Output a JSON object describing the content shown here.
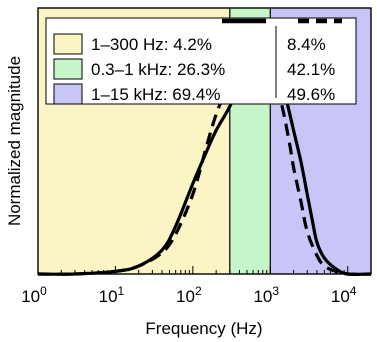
{
  "chart_data": {
    "type": "line",
    "xlabel": "Frequency (Hz)",
    "ylabel": "Normalized magnitude",
    "xscale": "log",
    "xlim": [
      1,
      20000
    ],
    "ylim": [
      0,
      1.0
    ],
    "grid": false,
    "x_ticks": [
      {
        "value": 1,
        "base": "10",
        "exp": "0"
      },
      {
        "value": 10,
        "base": "10",
        "exp": "1"
      },
      {
        "value": 100,
        "base": "10",
        "exp": "2"
      },
      {
        "value": 1000,
        "base": "10",
        "exp": "3"
      },
      {
        "value": 10000,
        "base": "10",
        "exp": "4"
      }
    ],
    "bands": [
      {
        "label": "1–300 Hz: 4.2%",
        "alt_value": "8.4%",
        "from": 1,
        "to": 300,
        "color": "#fbf4c4"
      },
      {
        "label": "0.3–1 kHz: 26.3%",
        "alt_value": "42.1%",
        "from": 300,
        "to": 1000,
        "color": "#c6f5c9"
      },
      {
        "label": "1–15 kHz: 69.4%",
        "alt_value": "49.6%",
        "from": 1000,
        "to": 20000,
        "color": "#c7c6f7"
      }
    ],
    "series": [
      {
        "style": "solid",
        "x": [
          1,
          3,
          10,
          20,
          40,
          60,
          100,
          150,
          200,
          300,
          400,
          500,
          600,
          700,
          800,
          1000,
          1300,
          1600,
          2000,
          2500,
          3000,
          3500,
          4000,
          5000,
          7000,
          10000,
          20000
        ],
        "y": [
          0.0,
          0.0,
          0.01,
          0.03,
          0.09,
          0.18,
          0.34,
          0.46,
          0.54,
          0.63,
          0.72,
          0.8,
          0.87,
          0.94,
          0.9,
          0.84,
          0.76,
          0.66,
          0.54,
          0.42,
          0.3,
          0.2,
          0.12,
          0.06,
          0.02,
          0.0,
          0.0
        ]
      },
      {
        "style": "dashed",
        "x": [
          1,
          3,
          10,
          20,
          40,
          60,
          100,
          150,
          200,
          300,
          400,
          500,
          600,
          700,
          800,
          1000,
          1200,
          1500,
          1800,
          2000,
          2500,
          3000,
          4000,
          5000,
          7000,
          10000,
          20000
        ],
        "y": [
          0.0,
          0.0,
          0.01,
          0.03,
          0.08,
          0.15,
          0.3,
          0.48,
          0.6,
          0.73,
          0.84,
          0.89,
          0.91,
          0.92,
          0.88,
          0.82,
          0.72,
          0.6,
          0.48,
          0.4,
          0.27,
          0.16,
          0.07,
          0.03,
          0.01,
          0.0,
          0.0
        ]
      }
    ]
  },
  "colors": {
    "frame": "#000000",
    "line": "#000000"
  }
}
